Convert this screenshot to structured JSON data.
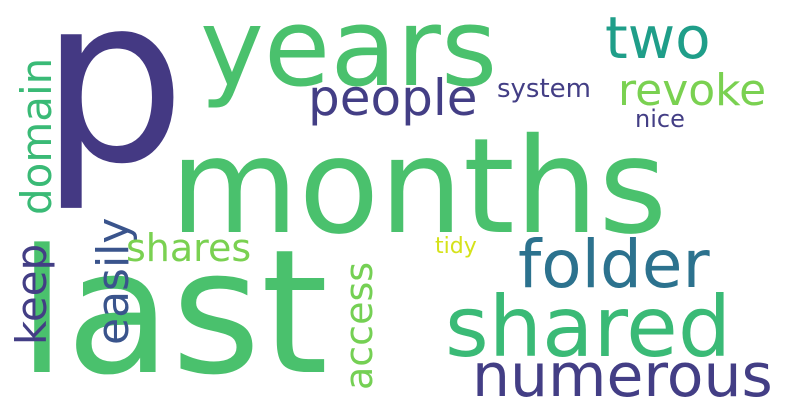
{
  "words": {
    "p": {
      "text": "p",
      "color": "#443983"
    },
    "months": {
      "text": "months",
      "color": "#4ac16d"
    },
    "last": {
      "text": "last",
      "color": "#4ac16d"
    },
    "years": {
      "text": "years",
      "color": "#4ac16d"
    },
    "shared": {
      "text": "shared",
      "color": "#3aba76"
    },
    "folder": {
      "text": "folder",
      "color": "#2c728e"
    },
    "numerous": {
      "text": "numerous",
      "color": "#433e85"
    },
    "two": {
      "text": "two",
      "color": "#1f9e89"
    },
    "people": {
      "text": "people",
      "color": "#433e85"
    },
    "revoke": {
      "text": "revoke",
      "color": "#7ad151"
    },
    "domain": {
      "text": "domain",
      "color": "#3aba76"
    },
    "easily": {
      "text": "easily",
      "color": "#3a548c"
    },
    "keep": {
      "text": "keep",
      "color": "#433e85"
    },
    "shares": {
      "text": "shares",
      "color": "#7ad151"
    },
    "access": {
      "text": "access",
      "color": "#75d054"
    },
    "system": {
      "text": "system",
      "color": "#433e85"
    },
    "nice": {
      "text": "nice",
      "color": "#433e85"
    },
    "tidy": {
      "text": "tidy",
      "color": "#d5e21a"
    }
  }
}
